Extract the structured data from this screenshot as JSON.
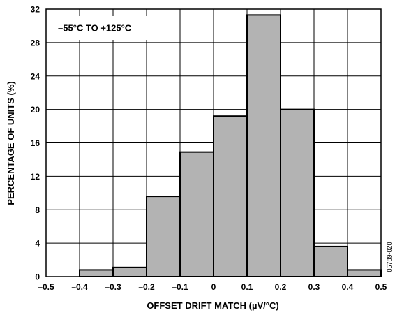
{
  "chart_data": {
    "type": "bar",
    "histogram": true,
    "bin_edges": [
      -0.5,
      -0.4,
      -0.3,
      -0.2,
      -0.1,
      0,
      0.1,
      0.2,
      0.3,
      0.4,
      0.5
    ],
    "values": [
      0,
      0.8,
      1.1,
      9.6,
      14.9,
      19.2,
      31.3,
      20.0,
      3.6,
      0.8
    ],
    "xlabel": "OFFSET DRIFT MATCH (µV/°C)",
    "ylabel": "PERCENTAGE OF UNITS (%)",
    "annotation": "–55°C TO +125°C",
    "figure_id": "05789-020",
    "xlim": [
      -0.5,
      0.5
    ],
    "ylim": [
      0,
      32
    ],
    "x_ticks": [
      -0.5,
      -0.4,
      -0.3,
      -0.2,
      -0.1,
      0,
      0.1,
      0.2,
      0.3,
      0.4,
      0.5
    ],
    "x_tick_labels": [
      "–0.5",
      "–0.4",
      "–0.3",
      "–0.2",
      "–0.1",
      "0",
      "0.1",
      "0.2",
      "0.3",
      "0.4",
      "0.5"
    ],
    "y_ticks": [
      0,
      4,
      8,
      12,
      16,
      20,
      24,
      28,
      32
    ],
    "y_tick_labels": [
      "0",
      "4",
      "8",
      "12",
      "16",
      "20",
      "24",
      "28",
      "32"
    ],
    "grid": true,
    "colors": {
      "bar_fill": "#b3b3b3",
      "bar_stroke": "#000000",
      "grid": "#000000"
    }
  }
}
